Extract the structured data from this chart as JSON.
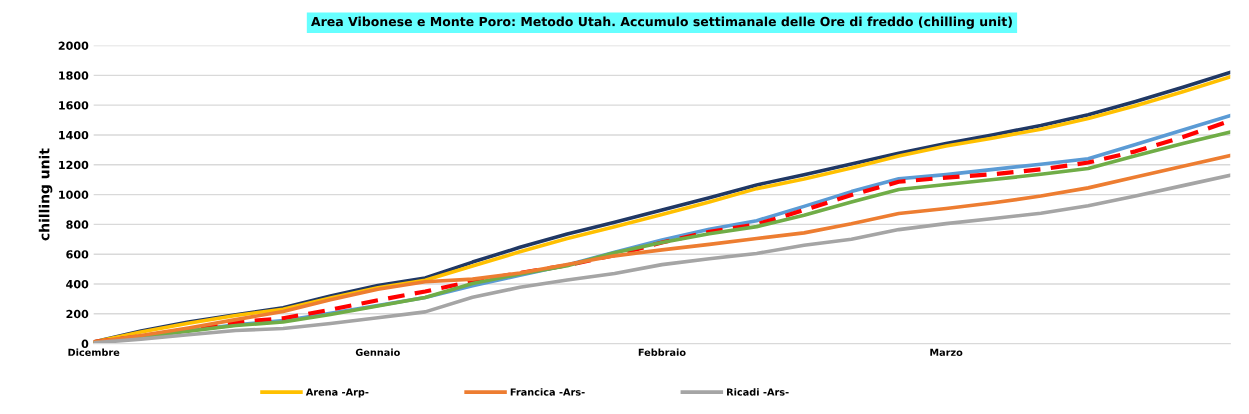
{
  "chart_data": {
    "type": "line",
    "title": "Area Vibonese e Monte Poro: Metodo Utah. Accumulo settimanale delle Ore di freddo (chilling unit)",
    "ylabel": "chilling unit",
    "categories": [
      "Dicembre",
      null,
      null,
      null,
      null,
      null,
      "Gennaio",
      null,
      null,
      null,
      null,
      null,
      "Febbraio",
      null,
      null,
      null,
      null,
      null,
      "Marzo",
      null,
      null,
      null,
      null,
      null,
      null
    ],
    "series": [
      {
        "color": "#203864",
        "values": [
          10,
          85,
          145,
          194,
          241,
          319,
          390,
          440,
          547,
          646,
          736,
          814,
          896,
          979,
          1065,
          1133,
          1205,
          1278,
          1342,
          1401,
          1464,
          1535,
          1624,
          1720,
          1820
        ]
      },
      {
        "name": "Arena -Arp-",
        "color": "#ffc000",
        "values": [
          10,
          78,
          137,
          189,
          231,
          306,
          375,
          425,
          521,
          616,
          706,
          784,
          866,
          951,
          1040,
          1104,
          1179,
          1259,
          1326,
          1380,
          1439,
          1510,
          1596,
          1690,
          1790
        ]
      },
      {
        "color": "#5b9bd5",
        "values": [
          null,
          null,
          86,
          126,
          154,
          203,
          256,
          310,
          389,
          459,
          527,
          613,
          696,
          768,
          825,
          921,
          1020,
          1106,
          1134,
          1169,
          1204,
          1240,
          1336,
          1433,
          1530
        ]
      },
      {
        "color": "#ff0000",
        "line_style": "dashed",
        "values": [
          10,
          49,
          97,
          145,
          170,
          228,
          291,
          350,
          418,
          474,
          526,
          594,
          678,
          750,
          800,
          896,
          997,
          1086,
          1114,
          1137,
          1169,
          1215,
          1290,
          1386,
          1495
        ]
      },
      {
        "color": "#70ad47",
        "values": [
          5,
          44,
          84,
          122,
          145,
          196,
          253,
          310,
          403,
          468,
          523,
          610,
          679,
          737,
          785,
          862,
          950,
          1034,
          1068,
          1101,
          1136,
          1175,
          1261,
          1342,
          1420
        ]
      },
      {
        "name": "Francica -Ars-",
        "color": "#ed7d31",
        "values": [
          10,
          54,
          105,
          161,
          215,
          294,
          365,
          415,
          433,
          474,
          531,
          589,
          629,
          666,
          705,
          743,
          804,
          873,
          907,
          945,
          990,
          1045,
          1118,
          1190,
          1262
        ]
      },
      {
        "name": "Ricadi -Ars-",
        "color": "#a5a5a5",
        "values": [
          5,
          30,
          59,
          88,
          101,
          135,
          174,
          213,
          311,
          378,
          427,
          470,
          530,
          570,
          605,
          660,
          700,
          765,
          805,
          840,
          875,
          925,
          990,
          1060,
          1129
        ]
      }
    ],
    "ylim": [
      0,
      2000
    ],
    "yticks": [
      0,
      200,
      400,
      600,
      800,
      1000,
      1200,
      1400,
      1600,
      1800,
      2000
    ],
    "grid": "y",
    "legend": "bottom",
    "line_style": "solid",
    "marker": "none"
  }
}
